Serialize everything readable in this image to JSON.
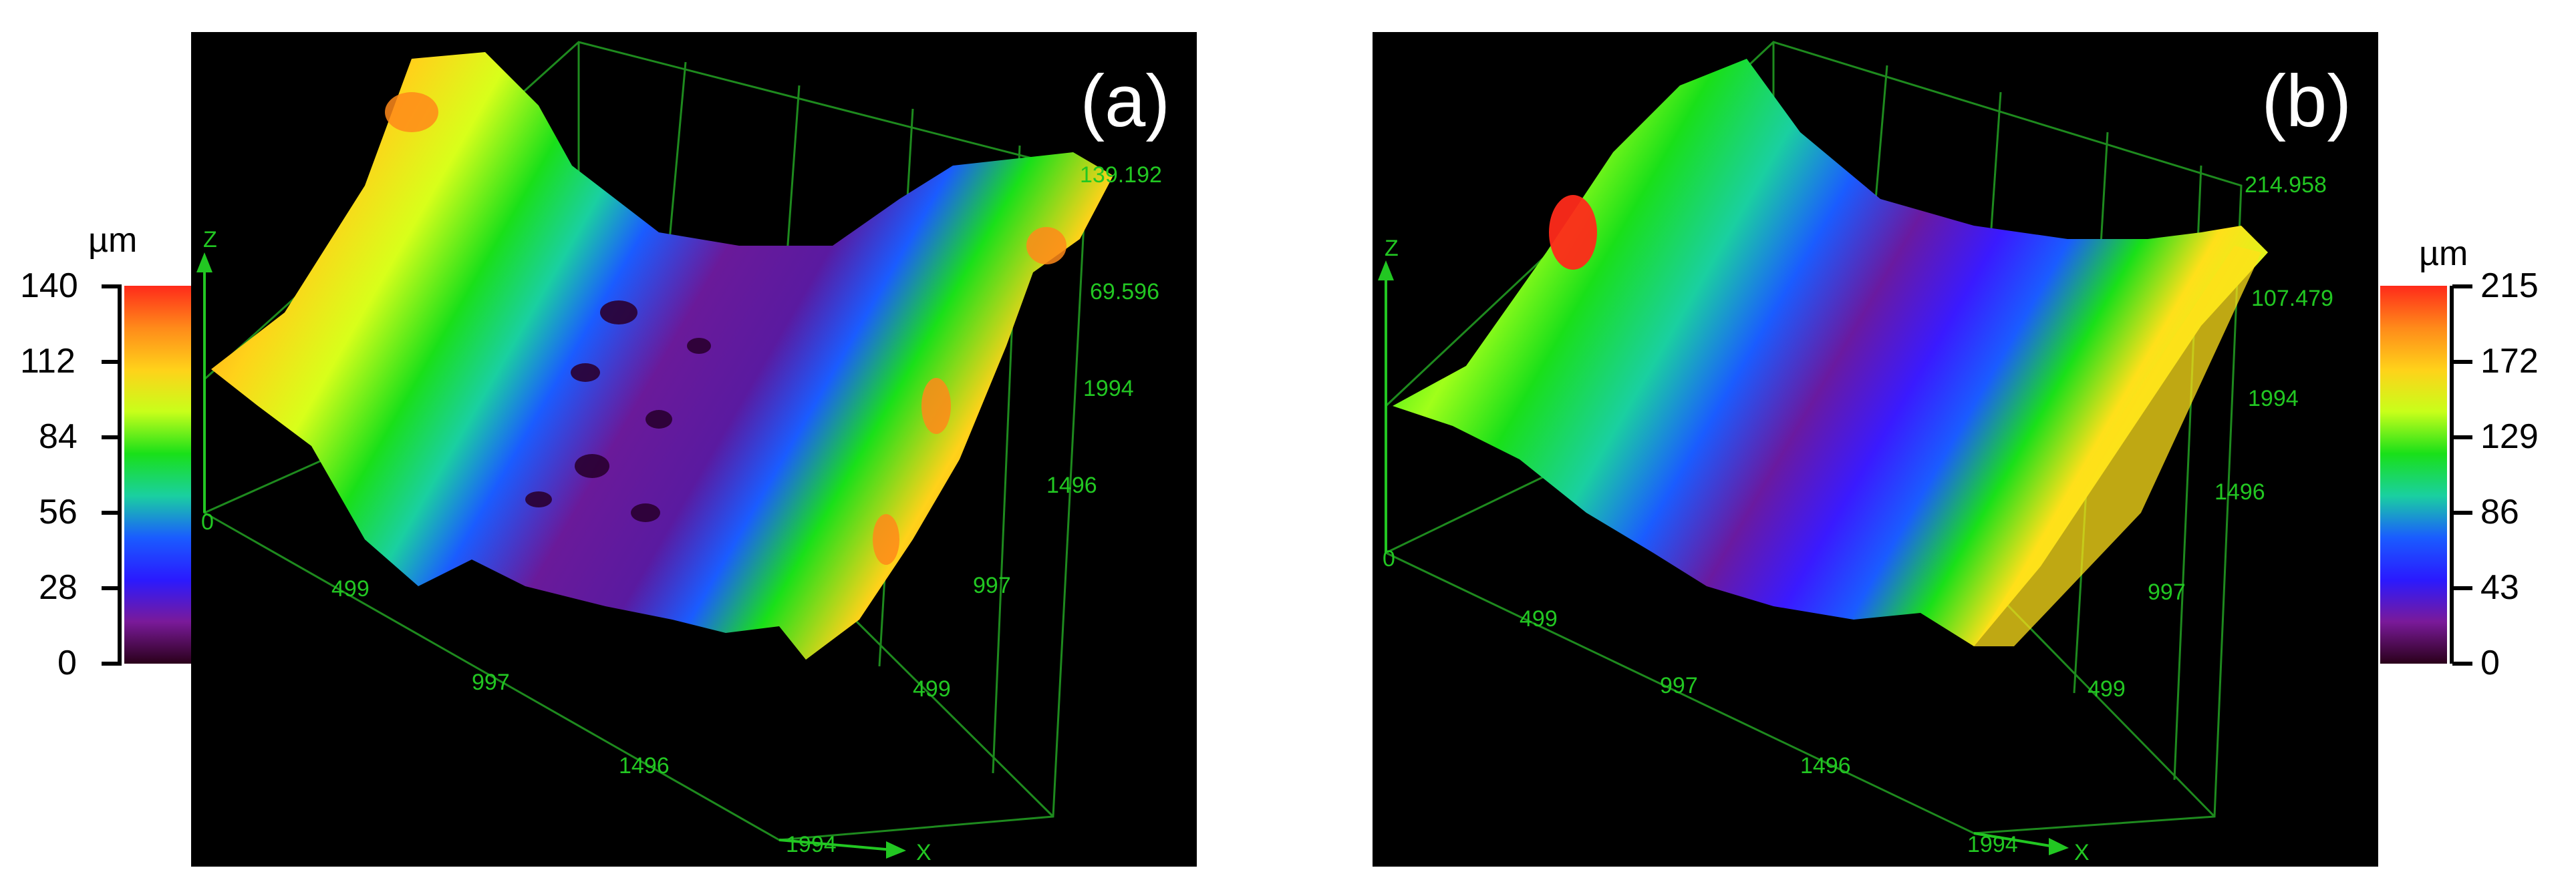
{
  "panels": [
    {
      "id": "a",
      "label": "(a)",
      "z_label": "Z",
      "x_label": "X",
      "z_ticks": [
        "139.192",
        "69.596"
      ],
      "y_ticks": [
        "1994",
        "1496",
        "997",
        "499"
      ],
      "x_ticks": [
        "0",
        "499",
        "997",
        "1496",
        "1994"
      ],
      "colorbar": {
        "unit": "µm",
        "ticks": [
          "140",
          "112",
          "84",
          "56",
          "28",
          "0"
        ]
      }
    },
    {
      "id": "b",
      "label": "(b)",
      "z_label": "Z",
      "x_label": "X",
      "z_ticks": [
        "214.958",
        "107.479"
      ],
      "y_ticks": [
        "1994",
        "1496",
        "997",
        "499"
      ],
      "x_ticks": [
        "0",
        "499",
        "997",
        "1496",
        "1994"
      ],
      "colorbar": {
        "unit": "µm",
        "ticks": [
          "215",
          "172",
          "129",
          "86",
          "43",
          "0"
        ]
      }
    }
  ],
  "colormap": [
    "#ff2a1a",
    "#ff8a1a",
    "#ffd21a",
    "#c8ff1a",
    "#19e019",
    "#1a5cff",
    "#2a1aff",
    "#7a1a9a",
    "#2a001a"
  ]
}
